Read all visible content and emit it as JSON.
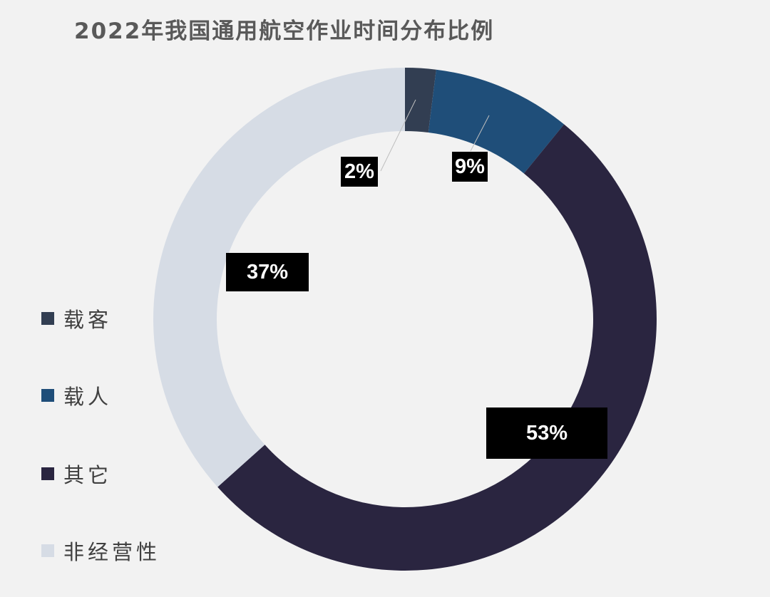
{
  "title": "2022年我国通用航空作业时间分布比例",
  "chart_data": {
    "type": "pie",
    "variant": "donut",
    "title": "2022年我国通用航空作业时间分布比例",
    "legend_position": "left",
    "categories": [
      "载客",
      "载人",
      "其它",
      "非经营性"
    ],
    "values": [
      2,
      9,
      53,
      37
    ],
    "labels": [
      "2%",
      "9%",
      "53%",
      "37%"
    ],
    "colors": [
      "#323e52",
      "#1f4e79",
      "#2a2540",
      "#d6dce5"
    ]
  }
}
